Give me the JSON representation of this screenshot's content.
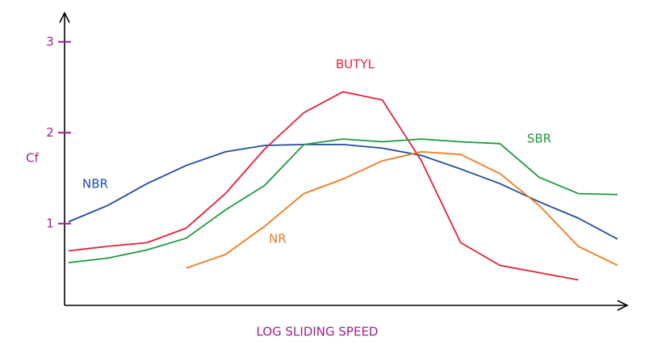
{
  "chart_data": {
    "type": "line",
    "ylabel": "Cf",
    "xlabel": "LOG SLIDING SPEED",
    "categories": [
      null,
      null,
      null,
      null,
      null,
      null,
      null,
      null,
      null,
      null,
      null,
      null,
      null,
      null,
      null
    ],
    "ylim": [
      0.1,
      3.3
    ],
    "yticks": [
      1,
      2,
      3
    ],
    "series": [
      {
        "name": "NBR",
        "color": "#1f4e9c",
        "values": [
          1.02,
          1.2,
          1.44,
          1.64,
          1.79,
          1.86,
          1.87,
          1.87,
          1.83,
          1.75,
          1.6,
          1.44,
          1.24,
          1.06,
          0.83
        ]
      },
      {
        "name": "BUTYL",
        "color": "#e0223a",
        "values": [
          0.7,
          0.75,
          0.79,
          0.95,
          1.33,
          1.82,
          2.22,
          2.45,
          2.36,
          1.69,
          0.79,
          0.54,
          0.46,
          0.38,
          null
        ]
      },
      {
        "name": "SBR",
        "color": "#1f9a3e",
        "values": [
          0.57,
          0.62,
          0.71,
          0.84,
          1.15,
          1.42,
          1.87,
          1.93,
          1.9,
          1.93,
          1.9,
          1.88,
          1.51,
          1.33,
          1.32
        ]
      },
      {
        "name": "NR",
        "color": "#f07a20",
        "values": [
          null,
          null,
          null,
          0.51,
          0.66,
          0.97,
          1.33,
          1.49,
          1.69,
          1.79,
          1.76,
          1.55,
          1.2,
          0.75,
          0.54
        ]
      }
    ]
  }
}
